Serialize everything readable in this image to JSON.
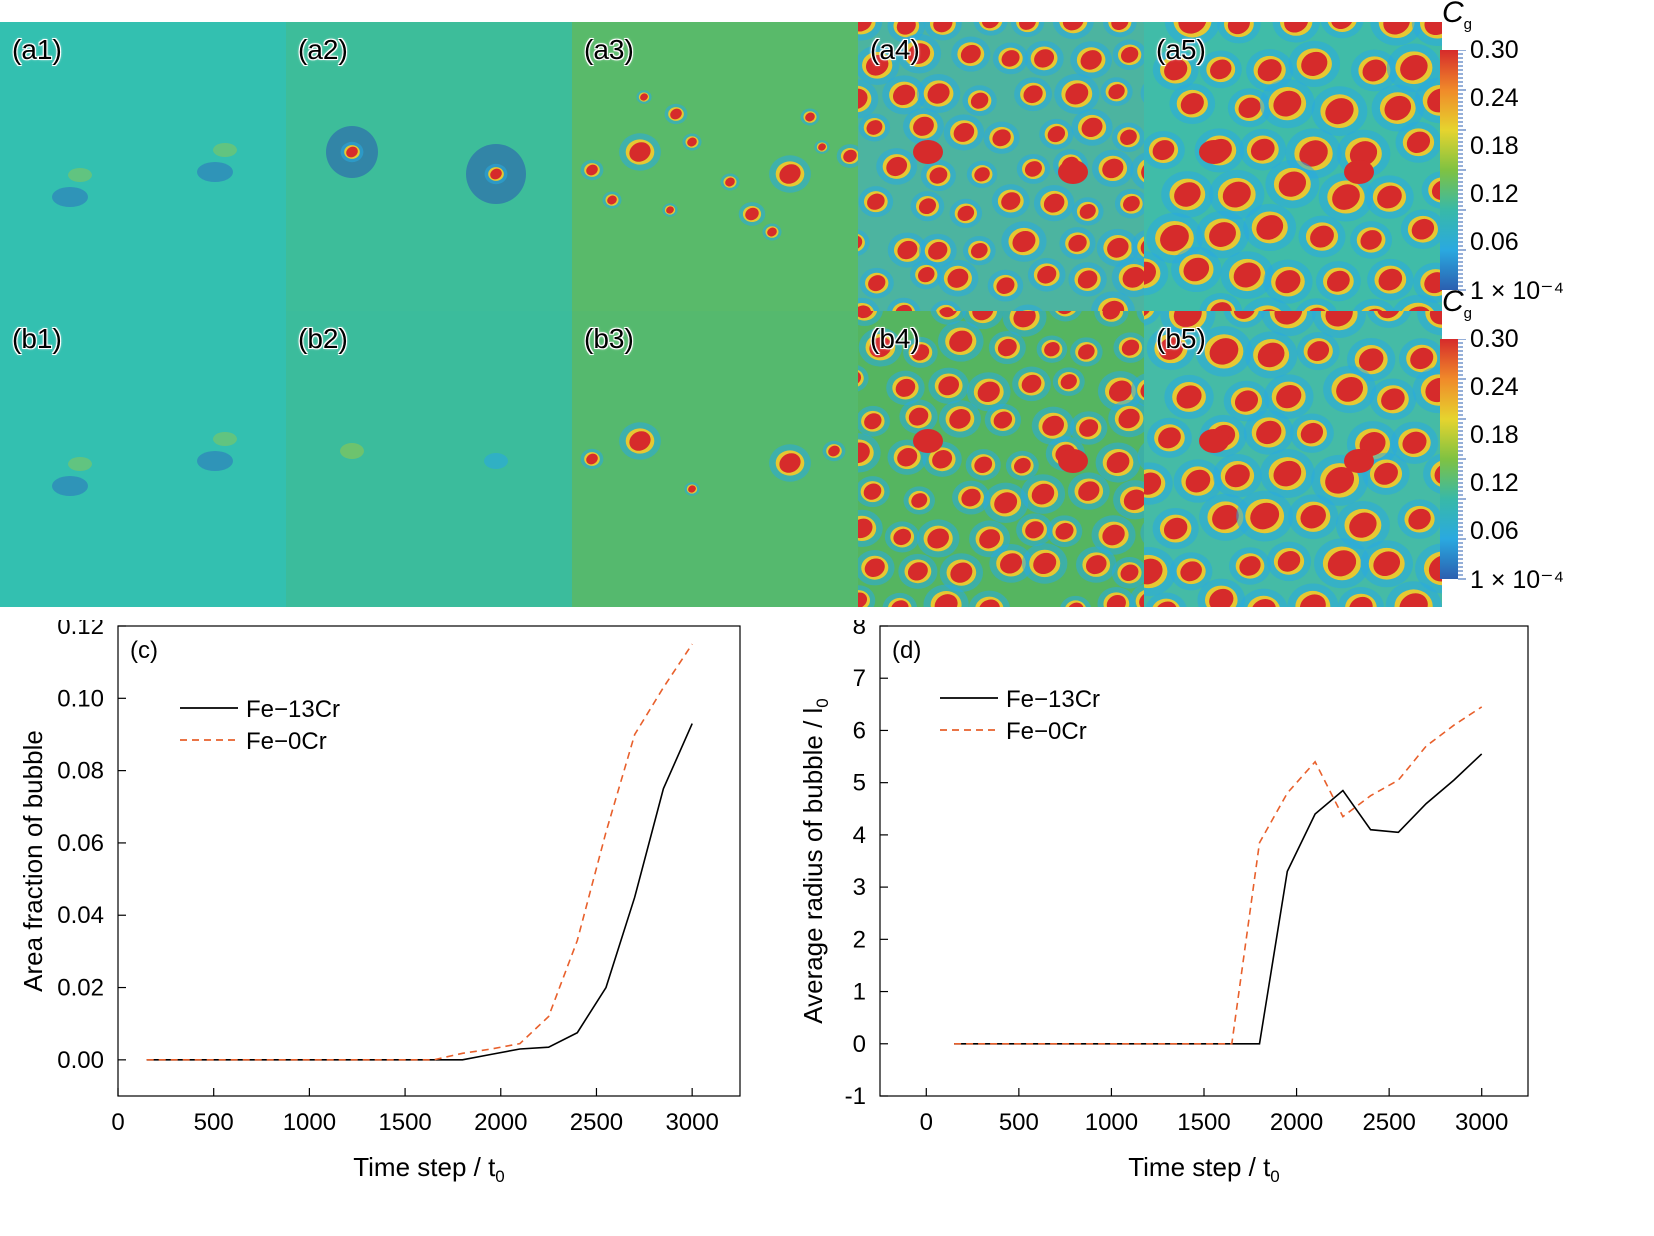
{
  "panels": {
    "row_a": [
      "(a1)",
      "(a2)",
      "(a3)",
      "(a4)",
      "(a5)"
    ],
    "row_b": [
      "(b1)",
      "(b2)",
      "(b3)",
      "(b4)",
      "(b5)"
    ]
  },
  "colorbar": {
    "title": "C",
    "title_sub": "g",
    "ticks": [
      "0.30",
      "0.24",
      "0.18",
      "0.12",
      "0.06",
      "1 × 10⁻⁴"
    ],
    "colors": [
      "#d62b2b",
      "#f08a2a",
      "#e6d42e",
      "#7fc242",
      "#38b9a8",
      "#2aa9e0",
      "#2b5fb0"
    ]
  },
  "colors": {
    "fe13cr": "#000000",
    "fe0cr": "#e8602c",
    "bubble": "#d62b2b",
    "bubble_rim": "#e6c832"
  },
  "chart_data": [
    {
      "type": "line",
      "panel_label": "(c)",
      "xlabel": "Time step / t",
      "xlabel_sub": "0",
      "ylabel": "Area fraction of bubble",
      "xlim": [
        0,
        3250
      ],
      "ylim": [
        -0.01,
        0.12
      ],
      "xticks": [
        "0",
        "500",
        "1000",
        "1500",
        "2000",
        "2500",
        "3000"
      ],
      "yticks": [
        "0.00",
        "0.02",
        "0.04",
        "0.06",
        "0.08",
        "0.10",
        "0.12"
      ],
      "legend_position": "upper-left",
      "series": [
        {
          "name": "Fe−13Cr",
          "style": "solid",
          "x": [
            150,
            300,
            450,
            600,
            750,
            900,
            1050,
            1200,
            1350,
            1500,
            1650,
            1800,
            1950,
            2100,
            2250,
            2400,
            2550,
            2700,
            2850,
            3000
          ],
          "y": [
            0,
            0,
            0,
            0,
            0,
            0,
            0,
            0,
            0,
            0,
            0,
            0,
            0.0015,
            0.003,
            0.0035,
            0.0075,
            0.02,
            0.045,
            0.075,
            0.093
          ]
        },
        {
          "name": "Fe−0Cr",
          "style": "dashed",
          "x": [
            150,
            300,
            450,
            600,
            750,
            900,
            1050,
            1200,
            1350,
            1500,
            1650,
            1800,
            1950,
            2100,
            2250,
            2400,
            2550,
            2700,
            2850,
            3000
          ],
          "y": [
            0,
            0,
            0,
            0,
            0,
            0,
            0,
            0,
            0,
            0,
            0,
            0.0018,
            0.003,
            0.0045,
            0.012,
            0.033,
            0.063,
            0.09,
            0.103,
            0.115
          ]
        }
      ]
    },
    {
      "type": "line",
      "panel_label": "(d)",
      "xlabel": "Time step / t",
      "xlabel_sub": "0",
      "ylabel": "Average radius of bubble / l",
      "ylabel_sub": "0",
      "xlim": [
        -250,
        3250
      ],
      "ylim": [
        -1,
        8
      ],
      "xticks": [
        "0",
        "500",
        "1000",
        "1500",
        "2000",
        "2500",
        "3000"
      ],
      "yticks": [
        "-1",
        "0",
        "1",
        "2",
        "3",
        "4",
        "5",
        "6",
        "7",
        "8"
      ],
      "legend_position": "upper-left",
      "series": [
        {
          "name": "Fe−13Cr",
          "style": "solid",
          "x": [
            150,
            300,
            450,
            600,
            750,
            900,
            1050,
            1200,
            1350,
            1500,
            1650,
            1800,
            1950,
            2100,
            2250,
            2400,
            2550,
            2700,
            2850,
            3000
          ],
          "y": [
            0,
            0,
            0,
            0,
            0,
            0,
            0,
            0,
            0,
            0,
            0,
            0,
            3.3,
            4.4,
            4.85,
            4.1,
            4.05,
            4.6,
            5.05,
            5.55
          ]
        },
        {
          "name": "Fe−0Cr",
          "style": "dashed",
          "x": [
            150,
            300,
            450,
            600,
            750,
            900,
            1050,
            1200,
            1350,
            1500,
            1650,
            1800,
            1950,
            2100,
            2250,
            2400,
            2550,
            2700,
            2850,
            3000
          ],
          "y": [
            0,
            0,
            0,
            0,
            0,
            0,
            0,
            0,
            0,
            0,
            0,
            3.85,
            4.8,
            5.4,
            4.35,
            4.75,
            5.05,
            5.7,
            6.1,
            6.45
          ]
        }
      ]
    }
  ]
}
